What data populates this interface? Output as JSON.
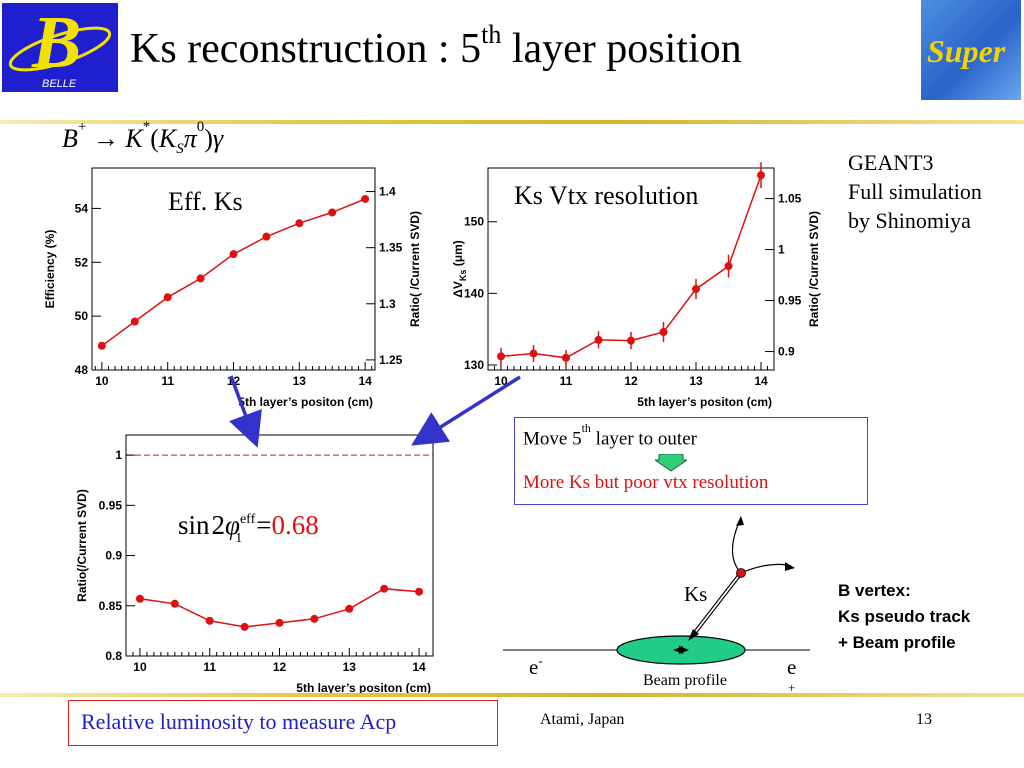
{
  "slide": {
    "title_main": "Ks reconstruction : 5",
    "title_sup": "th",
    "title_rest": " layer position",
    "logo_left_text": "BELLE",
    "logo_right_text": "Super",
    "formula": {
      "b": "B",
      "b_sup": "+",
      "arrow": " → ",
      "k": "K",
      "k_sup": "*",
      "open": "(",
      "ks": "K",
      "ks_sub": "S",
      "pi": "π",
      "pi_sup": "0",
      "close": ")",
      "gamma": "γ"
    },
    "geant_lines": [
      "GEANT3",
      "Full simulation",
      "by Shinomiya"
    ],
    "move_box": {
      "line1_a": "Move 5",
      "line1_sup": "th",
      "line1_b": " layer to outer",
      "line2": "More Ks but poor vtx resolution"
    },
    "diagram": {
      "ks_label": "Ks",
      "e_minus": "e",
      "e_minus_sup": "-",
      "e_plus": "e",
      "e_plus_sub": "+",
      "beam_label": "Beam profile"
    },
    "b_vertex_lines": [
      "B vertex:",
      "Ks pseudo track",
      "+ Beam profile"
    ],
    "lumi_note": "Relative luminosity to measure Acp",
    "footer_left": "Atami, Japan",
    "footer_right": "13",
    "colors": {
      "marker": "#dd1111",
      "line": "#dd1111",
      "arrow": "#3333cc",
      "red_text": "#e01010",
      "beam_fill": "#22cc88",
      "down_arrow_fill": "#33cc77"
    }
  },
  "chart_data": [
    {
      "type": "line",
      "title": "Eff. Ks",
      "xlabel": "5th layer’s positon (cm)",
      "ylabel": "Efficiency (%)",
      "ylabel_right": "Ratio( /Current SVD)",
      "xlim": [
        9.85,
        14.15
      ],
      "ylim": [
        48,
        55.5
      ],
      "x_ticks": [
        "10",
        "11",
        "12",
        "13",
        "14"
      ],
      "y_ticks": [
        "48",
        "50",
        "52",
        "54"
      ],
      "y_ticks_values": [
        48,
        50,
        52,
        54
      ],
      "right_ticks": [
        "1.25",
        "1.3",
        "1.35",
        "1.4"
      ],
      "right_ticks_values": [
        1.25,
        1.3,
        1.35,
        1.4
      ],
      "right_ylim": [
        1.241,
        1.421
      ],
      "x": [
        10,
        10.5,
        11,
        11.5,
        12,
        12.5,
        13,
        13.5,
        14
      ],
      "y": [
        48.9,
        49.8,
        50.7,
        51.4,
        52.3,
        52.95,
        53.45,
        53.85,
        54.35
      ],
      "errors": [
        0,
        0,
        0,
        0,
        0,
        0,
        0,
        0,
        0
      ]
    },
    {
      "type": "line",
      "title": "Ks Vtx resolution",
      "xlabel": "5th layer’s positon (cm)",
      "ylabel": "ΔV",
      "ylabel_sub": "Ks",
      "ylabel_unit": " (μm)",
      "ylabel_right": "Ratio( /Current SVD)",
      "xlim": [
        9.8,
        14.2
      ],
      "ylim": [
        129.3,
        157.5
      ],
      "x_ticks": [
        "10",
        "11",
        "12",
        "13",
        "14"
      ],
      "y_ticks": [
        "130",
        "140",
        "150"
      ],
      "y_ticks_values": [
        130,
        140,
        150
      ],
      "right_ticks": [
        "0.9",
        "0.95",
        "1",
        "1.05"
      ],
      "right_ticks_values": [
        0.9,
        0.95,
        1.0,
        1.05
      ],
      "right_ylim": [
        0.8819,
        1.08
      ],
      "x": [
        10,
        10.5,
        11,
        11.5,
        12,
        12.5,
        13,
        13.5,
        14
      ],
      "y": [
        131.2,
        131.6,
        131.0,
        133.5,
        133.4,
        134.6,
        140.6,
        143.8,
        156.5
      ],
      "errors": [
        1.2,
        1.2,
        1.1,
        1.2,
        1.2,
        1.4,
        1.4,
        1.6,
        1.8
      ]
    },
    {
      "type": "line",
      "title": "",
      "xlabel": "5th layer’s positon (cm)",
      "ylabel": "Ratio(/Current SVD)",
      "xlim": [
        9.8,
        14.2
      ],
      "ylim": [
        0.8,
        1.02
      ],
      "x_ticks": [
        "10",
        "11",
        "12",
        "13",
        "14"
      ],
      "y_ticks": [
        "0.8",
        "0.85",
        "0.9",
        "0.95",
        "1"
      ],
      "y_ticks_values": [
        0.8,
        0.85,
        0.9,
        0.95,
        1.0
      ],
      "reference_line": 1.0,
      "x": [
        10,
        10.5,
        11,
        11.5,
        12,
        12.5,
        13,
        13.5,
        14
      ],
      "y": [
        0.857,
        0.852,
        0.835,
        0.829,
        0.833,
        0.837,
        0.847,
        0.867,
        0.864
      ],
      "errors": [
        0,
        0,
        0,
        0,
        0,
        0,
        0,
        0,
        0
      ],
      "annotation": {
        "sin": "sin",
        "two": "2",
        "phi": "φ",
        "phi_sup": "eff",
        "phi_sub": "1",
        "eq": "=",
        "value": "0.68"
      }
    }
  ]
}
